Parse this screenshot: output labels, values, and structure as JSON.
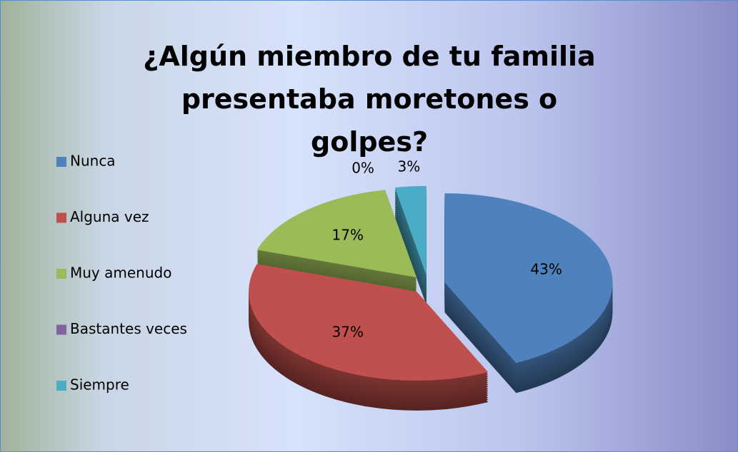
{
  "chart_data": {
    "type": "pie",
    "title": "¿Algún miembro de tu familia presentaba moretones o golpes?",
    "categories": [
      "Nunca",
      "Alguna vez",
      "Muy amenudo",
      "Bastantes veces",
      "Siempre"
    ],
    "values": [
      43,
      37,
      17,
      0,
      3
    ],
    "value_labels": [
      "43%",
      "37%",
      "17%",
      "0%",
      "3%"
    ],
    "colors": [
      "#4f81bd",
      "#c0504d",
      "#9bbb59",
      "#8064a2",
      "#4bacc6"
    ],
    "legend": "left"
  }
}
